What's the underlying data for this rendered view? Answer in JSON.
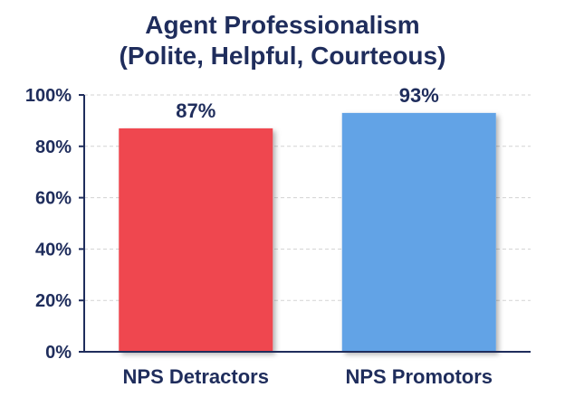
{
  "chart_data": {
    "type": "bar",
    "title_lines": [
      "Agent Professionalism",
      "(Polite, Helpful, Courteous)"
    ],
    "categories": [
      "NPS Detractors",
      "NPS Promotors"
    ],
    "values": [
      87,
      93
    ],
    "data_labels": [
      "87%",
      "93%"
    ],
    "colors": [
      "#ef4750",
      "#62a3e6"
    ],
    "ylim": [
      0,
      100
    ],
    "yticks": [
      0,
      20,
      40,
      60,
      80,
      100
    ],
    "ytick_labels": [
      "0%",
      "20%",
      "40%",
      "60%",
      "80%",
      "100%"
    ],
    "grid": true,
    "axis_color": "#1f2d5c",
    "text_color": "#1f2d5c"
  }
}
